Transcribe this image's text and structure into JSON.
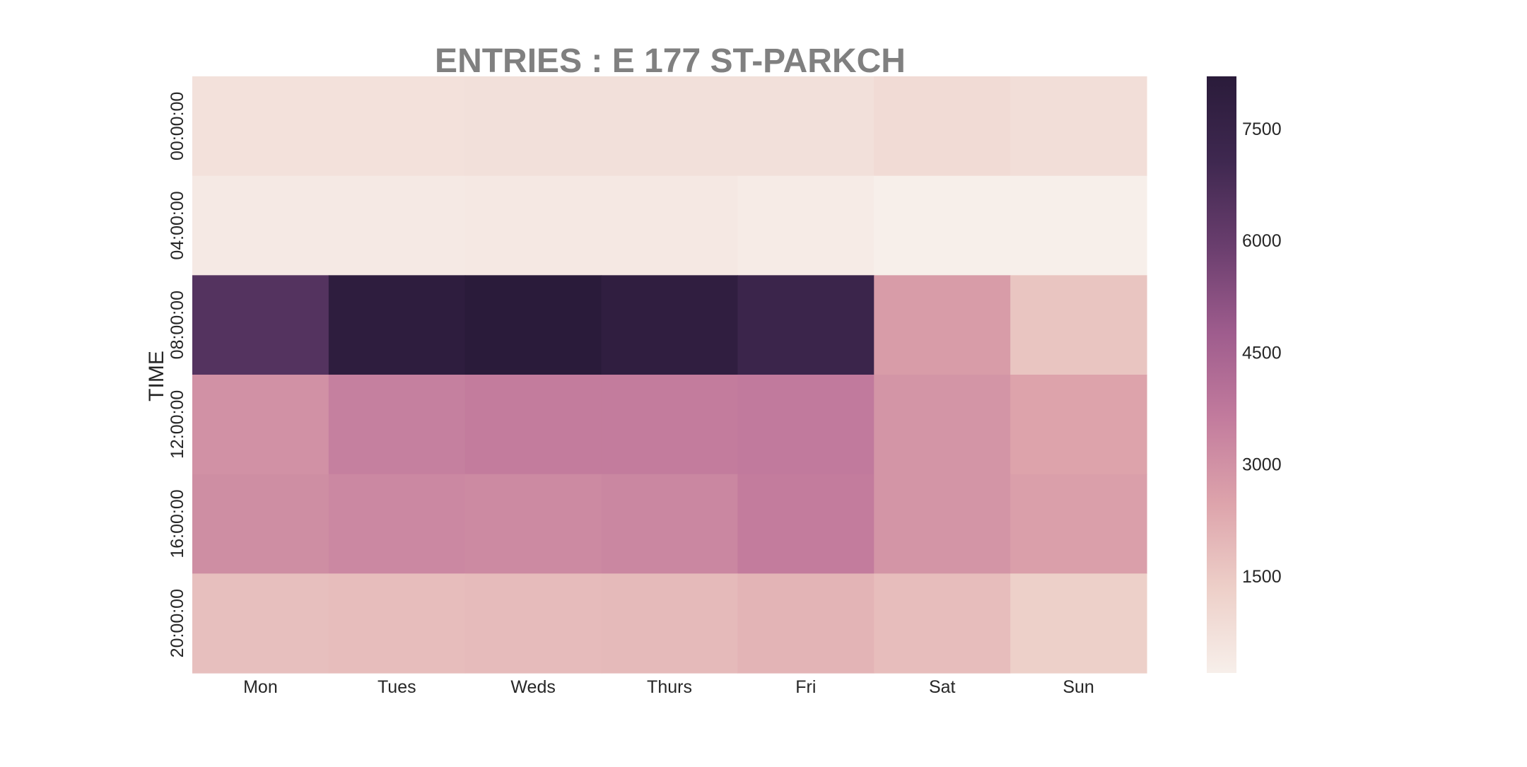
{
  "chart_data": {
    "type": "heatmap",
    "title": "ENTRIES : E 177 ST-PARKCH",
    "xlabel": "",
    "ylabel": "TIME",
    "x_categories": [
      "Mon",
      "Tues",
      "Weds",
      "Thurs",
      "Fri",
      "Sat",
      "Sun"
    ],
    "y_categories": [
      "00:00:00",
      "04:00:00",
      "08:00:00",
      "12:00:00",
      "16:00:00",
      "20:00:00"
    ],
    "values": [
      [
        700,
        700,
        750,
        750,
        750,
        900,
        800
      ],
      [
        400,
        400,
        450,
        450,
        350,
        200,
        200
      ],
      [
        6500,
        8000,
        8200,
        7900,
        7300,
        2700,
        1600
      ],
      [
        3000,
        3500,
        3600,
        3600,
        3650,
        2900,
        2500
      ],
      [
        3100,
        3250,
        3200,
        3300,
        3600,
        2900,
        2600
      ],
      [
        1750,
        1800,
        1850,
        1900,
        2050,
        1800,
        1300
      ]
    ],
    "colorbar": {
      "vmin": 200,
      "vmax": 8200,
      "ticks": [
        1500,
        3000,
        4500,
        6000,
        7500
      ],
      "tick_labels": [
        "1500",
        "3000",
        "4500",
        "6000",
        "7500"
      ],
      "colormap": [
        "#f7efea",
        "#edcfc8",
        "#dda3ab",
        "#c27b9d",
        "#9e5c8d",
        "#6a3e6e",
        "#3f2850",
        "#2a1b3a"
      ]
    },
    "grid": false
  },
  "colors": {
    "title": "#808080",
    "text": "#262626"
  }
}
